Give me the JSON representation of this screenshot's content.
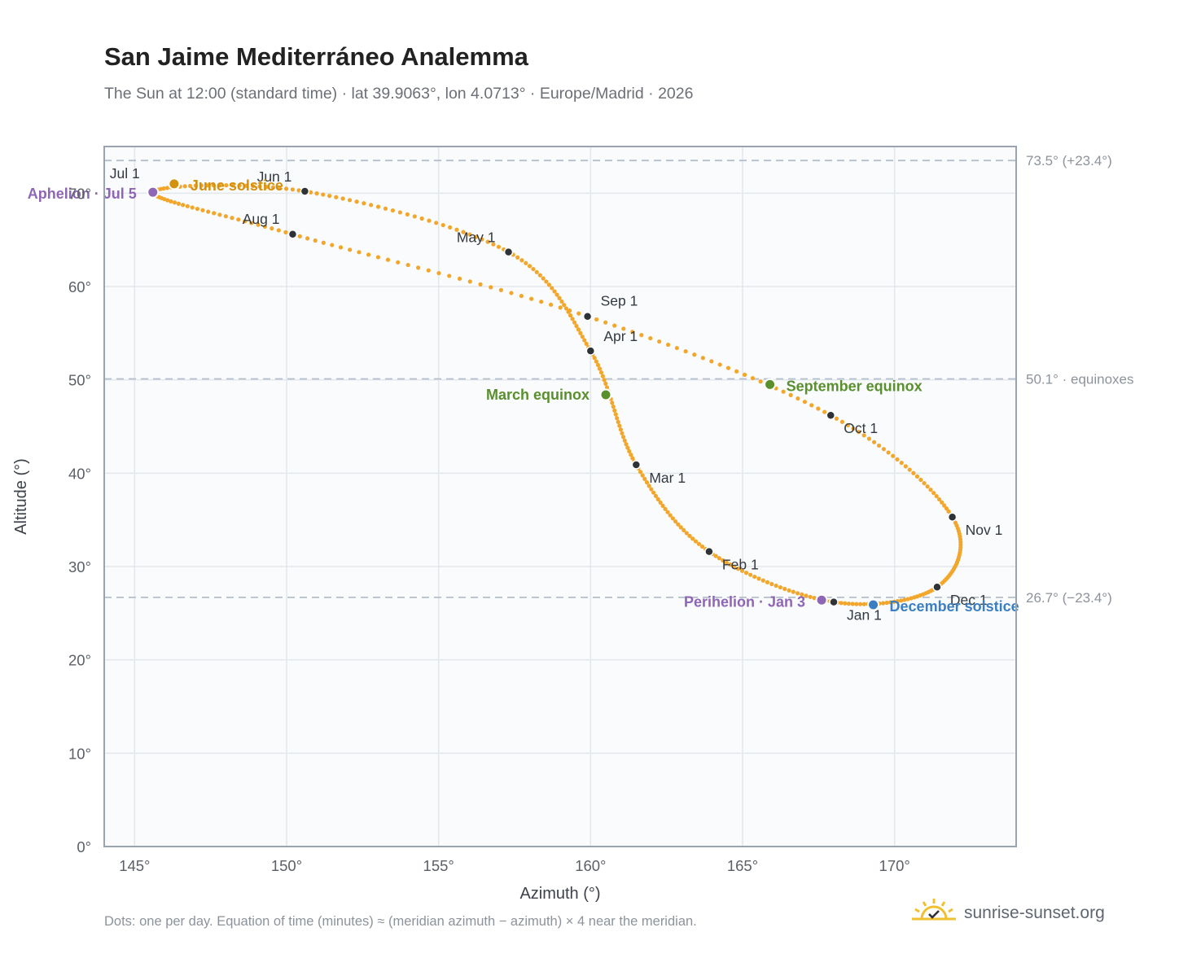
{
  "title": "San Jaime Mediterráneo Analemma",
  "subtitle": "The Sun at 12:00 (standard time) · lat 39.9063°, lon 4.0713° · Europe/Madrid · 2026",
  "footer_note": "Dots: one per day. Equation of time (minutes) ≈ (meridian azimuth − azimuth) × 4 near the meridian.",
  "brand": {
    "name": "sunrise-sunset.org",
    "icon": "sun-check-icon"
  },
  "colors": {
    "curve": "#f2a72c",
    "month_dot": "#2e3338",
    "equinox": "#5a8f2e",
    "solstice_june": "#d4900f",
    "solstice_december": "#3b7ec1",
    "apsis": "#8f66b5",
    "grid": "#e3e7ec",
    "plot_bg": "#f9fbfd",
    "frame": "#9aa4b1",
    "ref_line": "#b4bfcc"
  },
  "chart_data": {
    "type": "scatter",
    "title": "San Jaime Mediterráneo Analemma",
    "xlabel": "Azimuth (°)",
    "ylabel": "Altitude (°)",
    "xlim": [
      144,
      174
    ],
    "ylim": [
      0,
      75
    ],
    "x_ticks": [
      "145°",
      "150°",
      "155°",
      "160°",
      "165°",
      "170°"
    ],
    "y_ticks": [
      "0°",
      "10°",
      "20°",
      "30°",
      "40°",
      "50°",
      "60°",
      "70°"
    ],
    "grid": true,
    "months": [
      {
        "label": "Jan 1",
        "az": 168.0,
        "alt": 26.2
      },
      {
        "label": "Feb 1",
        "az": 163.9,
        "alt": 31.6
      },
      {
        "label": "Mar 1",
        "az": 161.5,
        "alt": 40.9
      },
      {
        "label": "Apr 1",
        "az": 160.0,
        "alt": 53.1
      },
      {
        "label": "May 1",
        "az": 157.3,
        "alt": 63.7
      },
      {
        "label": "Jun 1",
        "az": 150.6,
        "alt": 70.2
      },
      {
        "label": "Jul 1",
        "az": 145.6,
        "alt": 70.1
      },
      {
        "label": "Aug 1",
        "az": 150.2,
        "alt": 65.6
      },
      {
        "label": "Sep 1",
        "az": 159.9,
        "alt": 56.8
      },
      {
        "label": "Oct 1",
        "az": 167.9,
        "alt": 46.2
      },
      {
        "label": "Nov 1",
        "az": 171.9,
        "alt": 35.3
      },
      {
        "label": "Dec 1",
        "az": 171.4,
        "alt": 27.8
      }
    ],
    "events": [
      {
        "label": "March equinox",
        "az": 160.5,
        "alt": 48.4,
        "kind": "equinox"
      },
      {
        "label": "June solstice",
        "az": 146.3,
        "alt": 71.0,
        "kind": "solstice_june"
      },
      {
        "label": "September equinox",
        "az": 165.9,
        "alt": 49.5,
        "kind": "equinox"
      },
      {
        "label": "December solstice",
        "az": 169.3,
        "alt": 25.9,
        "kind": "solstice_december"
      },
      {
        "label": "Aphelion · Jul 5",
        "az": 145.6,
        "alt": 70.1,
        "kind": "apsis"
      },
      {
        "label": "Perihelion · Jan 3",
        "az": 167.6,
        "alt": 26.4,
        "kind": "apsis"
      }
    ],
    "reference_lines": [
      {
        "alt": 73.5,
        "label": "73.5° (+23.4°)"
      },
      {
        "alt": 50.1,
        "label": "50.1° · equinoxes"
      },
      {
        "alt": 26.7,
        "label": "26.7° (−23.4°)"
      }
    ]
  }
}
